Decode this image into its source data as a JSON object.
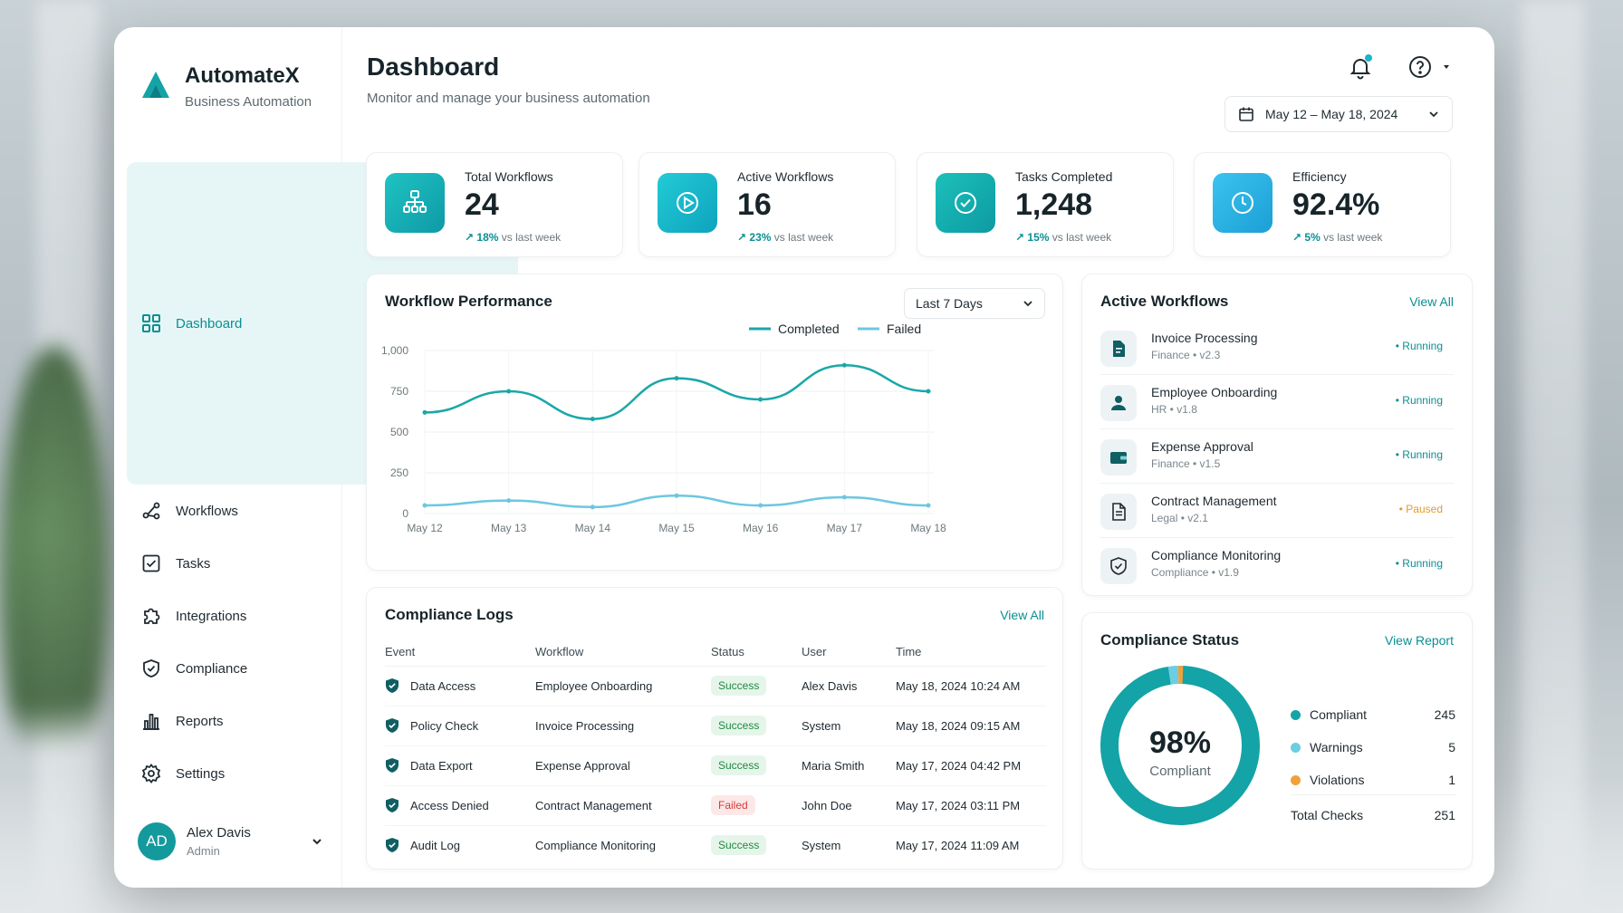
{
  "brand": {
    "name": "AutomateX",
    "subtitle": "Business Automation"
  },
  "nav": [
    {
      "label": "Dashboard",
      "icon": "grid-icon",
      "active": true
    },
    {
      "label": "Workflows",
      "icon": "workflow-icon"
    },
    {
      "label": "Tasks",
      "icon": "checkbox-icon"
    },
    {
      "label": "Integrations",
      "icon": "puzzle-icon"
    },
    {
      "label": "Compliance",
      "icon": "shield-icon"
    },
    {
      "label": "Reports",
      "icon": "bar-chart-icon"
    },
    {
      "label": "Settings",
      "icon": "gear-icon"
    }
  ],
  "user": {
    "initials": "AD",
    "name": "Alex Davis",
    "role": "Admin"
  },
  "header": {
    "title": "Dashboard",
    "subtitle": "Monitor and manage your business automation",
    "date_range": "May 12 – May 18, 2024"
  },
  "stats": [
    {
      "label": "Total Workflows",
      "value": "24",
      "pct": "18%",
      "trend": "vs last week",
      "icon": "workflow-tree-icon",
      "color": "#14b0b7"
    },
    {
      "label": "Active Workflows",
      "value": "16",
      "pct": "23%",
      "trend": "vs last week",
      "icon": "play-icon",
      "color": "#16b4c4"
    },
    {
      "label": "Tasks Completed",
      "value": "1,248",
      "pct": "15%",
      "trend": "vs last week",
      "icon": "check-circle-icon",
      "color": "#15aab0"
    },
    {
      "label": "Efficiency",
      "value": "92.4%",
      "pct": "5%",
      "trend": "vs last week",
      "icon": "clock-icon",
      "color": "#2cb0e0"
    }
  ],
  "performance": {
    "title": "Workflow Performance",
    "range": "Last 7 Days",
    "legend_completed": "Completed",
    "legend_failed": "Failed",
    "colors": {
      "completed": "#1aa7a8",
      "failed": "#6cc7e0"
    }
  },
  "chart_data": {
    "type": "line",
    "x": [
      "May 12",
      "May 13",
      "May 14",
      "May 15",
      "May 16",
      "May 17",
      "May 18"
    ],
    "series": [
      {
        "name": "Completed",
        "values": [
          620,
          750,
          580,
          830,
          700,
          910,
          750
        ]
      },
      {
        "name": "Failed",
        "values": [
          50,
          80,
          40,
          110,
          50,
          100,
          50
        ]
      }
    ],
    "ylim": [
      0,
      1000
    ],
    "yticks": [
      "0",
      "250",
      "500",
      "750",
      "1,000"
    ],
    "grid": true,
    "legend": "top-right"
  },
  "active_workflows": {
    "title": "Active Workflows",
    "view_all": "View All",
    "items": [
      {
        "name": "Invoice Processing",
        "meta": "Finance • v2.3",
        "status": "Running",
        "icon": "invoice-icon"
      },
      {
        "name": "Employee Onboarding",
        "meta": "HR • v1.8",
        "status": "Running",
        "icon": "person-icon"
      },
      {
        "name": "Expense Approval",
        "meta": "Finance • v1.5",
        "status": "Running",
        "icon": "wallet-icon"
      },
      {
        "name": "Contract Management",
        "meta": "Legal • v2.1",
        "status": "Paused",
        "icon": "document-icon"
      },
      {
        "name": "Compliance Monitoring",
        "meta": "Compliance • v1.9",
        "status": "Running",
        "icon": "shield-check-icon"
      }
    ]
  },
  "logs": {
    "title": "Compliance Logs",
    "view_all": "View All",
    "columns": [
      "Event",
      "Workflow",
      "Status",
      "User",
      "Time"
    ],
    "rows": [
      {
        "event": "Data Access",
        "workflow": "Employee Onboarding",
        "status": "Success",
        "user": "Alex Davis",
        "time": "May 18, 2024 10:24 AM"
      },
      {
        "event": "Policy Check",
        "workflow": "Invoice Processing",
        "status": "Success",
        "user": "System",
        "time": "May 18, 2024 09:15 AM"
      },
      {
        "event": "Data Export",
        "workflow": "Expense Approval",
        "status": "Success",
        "user": "Maria Smith",
        "time": "May 17, 2024 04:42 PM"
      },
      {
        "event": "Access Denied",
        "workflow": "Contract Management",
        "status": "Failed",
        "user": "John Doe",
        "time": "May 17, 2024 03:11 PM"
      },
      {
        "event": "Audit Log",
        "workflow": "Compliance Monitoring",
        "status": "Success",
        "user": "System",
        "time": "May 17, 2024 11:09 AM"
      }
    ]
  },
  "compliance_status": {
    "title": "Compliance Status",
    "view_report": "View Report",
    "percent": "98%",
    "percent_label": "Compliant",
    "items": [
      {
        "label": "Compliant",
        "value": "245",
        "color": "#14a3a6"
      },
      {
        "label": "Warnings",
        "value": "5",
        "color": "#6ccde3"
      },
      {
        "label": "Violations",
        "value": "1",
        "color": "#f0a13a"
      }
    ],
    "total_label": "Total Checks",
    "total_value": "251"
  }
}
